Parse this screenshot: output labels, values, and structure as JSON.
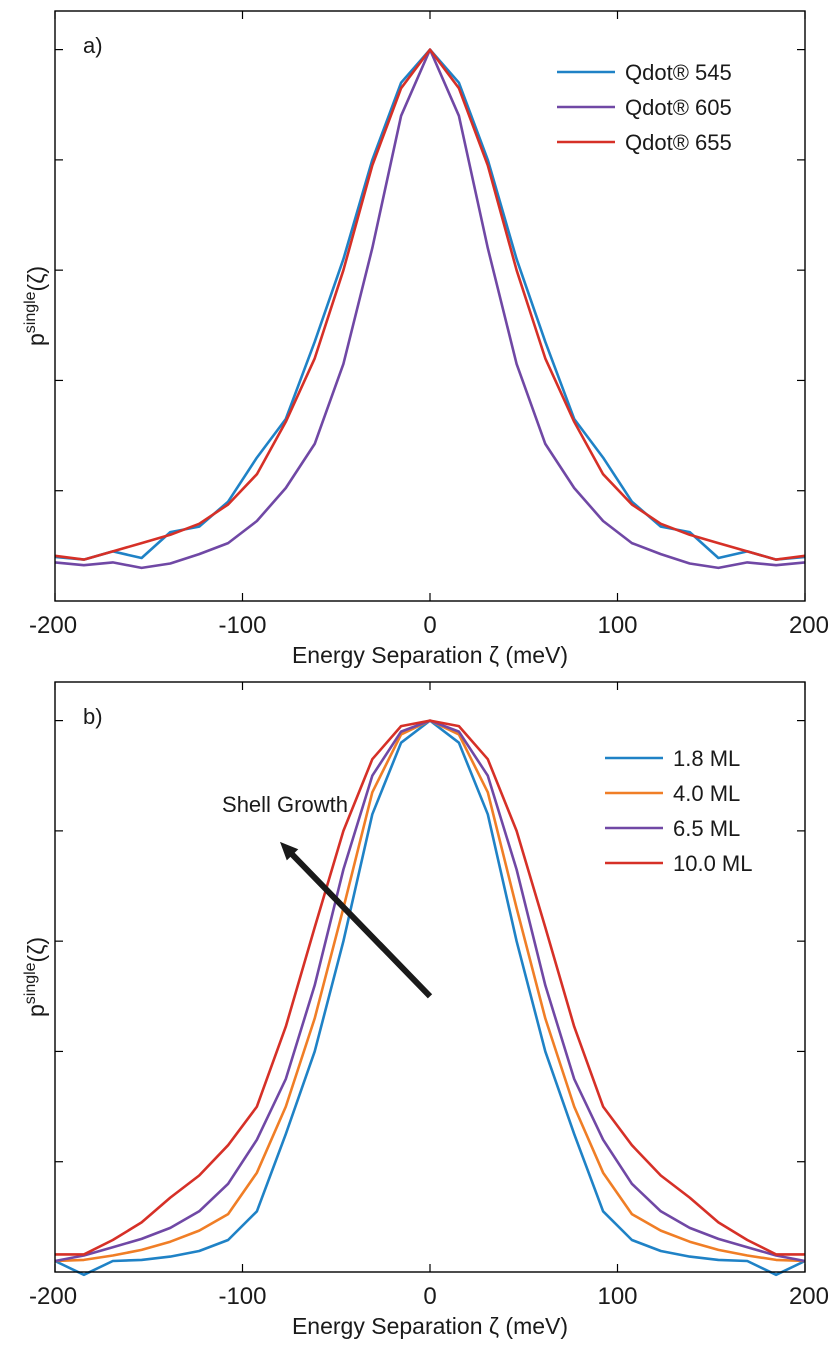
{
  "chart_data": [
    {
      "type": "line",
      "panel_label": "a)",
      "xlabel": "Energy Separation ζ (meV)",
      "ylabel_base": "p",
      "ylabel_sup": "single",
      "ylabel_arg": "(ζ)",
      "xlim": [
        -200,
        200
      ],
      "ylim": [
        0,
        1.07
      ],
      "x_ticks": [
        -200,
        -100,
        0,
        100,
        200
      ],
      "y_ticks": [
        0.2,
        0.4,
        0.6,
        0.8,
        1.0
      ],
      "show_y_tick_labels": false,
      "grid": false,
      "legend_position": "top-right",
      "x": [
        -200,
        -184.6,
        -169.2,
        -153.8,
        -138.5,
        -123.1,
        -107.7,
        -92.3,
        -76.9,
        -61.5,
        -46.2,
        -30.8,
        -15.4,
        0,
        15.4,
        30.8,
        46.2,
        61.5,
        76.9,
        92.3,
        107.7,
        123.1,
        138.5,
        153.8,
        169.2,
        184.6,
        200
      ],
      "series": [
        {
          "name": "Qdot® 545",
          "color": "#1f82c6",
          "values": [
            0.08,
            0.075,
            0.09,
            0.078,
            0.125,
            0.135,
            0.18,
            0.26,
            0.33,
            0.47,
            0.62,
            0.8,
            0.94,
            1.0,
            0.94,
            0.8,
            0.62,
            0.47,
            0.33,
            0.26,
            0.18,
            0.135,
            0.125,
            0.078,
            0.09,
            0.075,
            0.08
          ]
        },
        {
          "name": "Qdot® 605",
          "color": "#7048a5",
          "values": [
            0.07,
            0.065,
            0.07,
            0.06,
            0.068,
            0.085,
            0.105,
            0.145,
            0.205,
            0.285,
            0.43,
            0.64,
            0.88,
            1.0,
            0.88,
            0.64,
            0.43,
            0.285,
            0.205,
            0.145,
            0.105,
            0.085,
            0.068,
            0.06,
            0.07,
            0.065,
            0.07
          ]
        },
        {
          "name": "Qdot® 655",
          "color": "#d63027",
          "values": [
            0.082,
            0.075,
            0.09,
            0.105,
            0.12,
            0.14,
            0.175,
            0.23,
            0.325,
            0.44,
            0.6,
            0.79,
            0.93,
            1.0,
            0.93,
            0.79,
            0.6,
            0.44,
            0.325,
            0.23,
            0.175,
            0.14,
            0.12,
            0.105,
            0.09,
            0.075,
            0.082
          ]
        }
      ]
    },
    {
      "type": "line",
      "panel_label": "b)",
      "xlabel": "Energy Separation ζ (meV)",
      "ylabel_base": "p",
      "ylabel_sup": "single",
      "ylabel_arg": "(ζ)",
      "xlim": [
        -200,
        200
      ],
      "ylim": [
        0,
        1.07
      ],
      "x_ticks": [
        -200,
        -100,
        0,
        100,
        200
      ],
      "y_ticks": [
        0.2,
        0.4,
        0.6,
        0.8,
        1.0
      ],
      "show_y_tick_labels": false,
      "grid": false,
      "legend_position": "top-right",
      "annotation": {
        "text": "Shell Growth",
        "arrow_from": [
          0,
          0.5
        ],
        "arrow_to": [
          -80,
          0.78
        ]
      },
      "x": [
        -200,
        -184.6,
        -169.2,
        -153.8,
        -138.5,
        -123.1,
        -107.7,
        -92.3,
        -76.9,
        -61.5,
        -46.2,
        -30.8,
        -15.4,
        0,
        15.4,
        30.8,
        46.2,
        61.5,
        76.9,
        92.3,
        107.7,
        123.1,
        138.5,
        153.8,
        169.2,
        184.6,
        200
      ],
      "series": [
        {
          "name": "1.8 ML",
          "color": "#1f82c6",
          "values": [
            0.02,
            -0.005,
            0.02,
            0.022,
            0.028,
            0.038,
            0.058,
            0.11,
            0.25,
            0.4,
            0.6,
            0.83,
            0.96,
            1.0,
            0.96,
            0.83,
            0.6,
            0.4,
            0.25,
            0.11,
            0.058,
            0.038,
            0.028,
            0.022,
            0.02,
            -0.005,
            0.02
          ]
        },
        {
          "name": "4.0 ML",
          "color": "#f07e26",
          "values": [
            0.02,
            0.022,
            0.03,
            0.04,
            0.055,
            0.075,
            0.105,
            0.18,
            0.3,
            0.46,
            0.66,
            0.87,
            0.975,
            1.0,
            0.975,
            0.87,
            0.66,
            0.46,
            0.3,
            0.18,
            0.105,
            0.075,
            0.055,
            0.04,
            0.03,
            0.022,
            0.02
          ]
        },
        {
          "name": "6.5 ML",
          "color": "#7048a5",
          "values": [
            0.02,
            0.03,
            0.045,
            0.06,
            0.08,
            0.11,
            0.16,
            0.24,
            0.35,
            0.52,
            0.73,
            0.9,
            0.98,
            1.0,
            0.98,
            0.9,
            0.73,
            0.52,
            0.35,
            0.24,
            0.16,
            0.11,
            0.08,
            0.06,
            0.045,
            0.03,
            0.02
          ]
        },
        {
          "name": "10.0 ML",
          "color": "#d63027",
          "values": [
            0.032,
            0.032,
            0.058,
            0.09,
            0.135,
            0.175,
            0.23,
            0.3,
            0.445,
            0.625,
            0.8,
            0.93,
            0.99,
            1.0,
            0.99,
            0.93,
            0.8,
            0.625,
            0.445,
            0.3,
            0.23,
            0.175,
            0.135,
            0.09,
            0.058,
            0.032,
            0.032
          ]
        }
      ]
    }
  ]
}
